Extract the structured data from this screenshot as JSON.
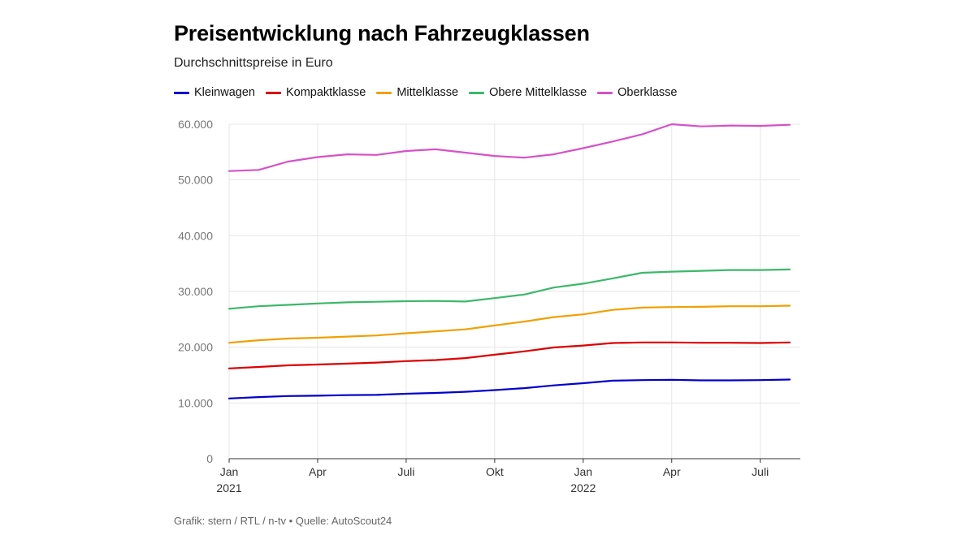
{
  "header": {
    "title": "Preisentwicklung nach Fahrzeugklassen",
    "subtitle": "Durchschnittspreise in Euro"
  },
  "footer": {
    "credit": "Grafik: stern / RTL / n-tv • Quelle: AutoScout24"
  },
  "colors": {
    "kleinwagen": "#0000cc",
    "kompaktklasse": "#dd0000",
    "mittelklasse": "#f0a000",
    "obere_mittelklasse": "#3cb86a",
    "oberklasse": "#d452c8",
    "grid": "#e6e6e6",
    "axis": "#333333"
  },
  "chart_data": {
    "type": "line",
    "title": "Preisentwicklung nach Fahrzeugklassen",
    "subtitle": "Durchschnittspreise in Euro",
    "xlabel": "",
    "ylabel": "",
    "ylim": [
      0,
      60000
    ],
    "grid": true,
    "legend_position": "top-left",
    "x": [
      "2021-01",
      "2021-02",
      "2021-03",
      "2021-04",
      "2021-05",
      "2021-06",
      "2021-07",
      "2021-08",
      "2021-09",
      "2021-10",
      "2021-11",
      "2021-12",
      "2022-01",
      "2022-02",
      "2022-03",
      "2022-04",
      "2022-05",
      "2022-06",
      "2022-07",
      "2022-08"
    ],
    "x_ticks": [
      {
        "index": 0,
        "label": "Jan",
        "year": "2021"
      },
      {
        "index": 3,
        "label": "Apr",
        "year": ""
      },
      {
        "index": 6,
        "label": "Juli",
        "year": ""
      },
      {
        "index": 9,
        "label": "Okt",
        "year": ""
      },
      {
        "index": 12,
        "label": "Jan",
        "year": "2022"
      },
      {
        "index": 15,
        "label": "Apr",
        "year": ""
      },
      {
        "index": 18,
        "label": "Juli",
        "year": ""
      }
    ],
    "y_ticks": [
      {
        "value": 0,
        "label": "0"
      },
      {
        "value": 10000,
        "label": "10.000"
      },
      {
        "value": 20000,
        "label": "20.000"
      },
      {
        "value": 30000,
        "label": "30.000"
      },
      {
        "value": 40000,
        "label": "40.000"
      },
      {
        "value": 50000,
        "label": "50.000"
      },
      {
        "value": 60000,
        "label": "60.000"
      }
    ],
    "series": [
      {
        "key": "kleinwagen",
        "name": "Kleinwagen",
        "values": [
          10800,
          11050,
          11250,
          11300,
          11400,
          11450,
          11650,
          11800,
          12000,
          12300,
          12650,
          13150,
          13550,
          14000,
          14100,
          14150,
          14050,
          14050,
          14100,
          14200
        ]
      },
      {
        "key": "kompaktklasse",
        "name": "Kompaktklasse",
        "values": [
          16200,
          16450,
          16750,
          16900,
          17050,
          17250,
          17500,
          17700,
          18050,
          18650,
          19250,
          19950,
          20300,
          20750,
          20850,
          20850,
          20800,
          20800,
          20750,
          20850
        ]
      },
      {
        "key": "mittelklasse",
        "name": "Mittelklasse",
        "values": [
          20800,
          21250,
          21550,
          21700,
          21900,
          22100,
          22500,
          22850,
          23200,
          23900,
          24600,
          25400,
          25900,
          26700,
          27100,
          27200,
          27250,
          27350,
          27350,
          27450
        ]
      },
      {
        "key": "obere_mittelklasse",
        "name": "Obere Mittelklasse",
        "values": [
          26900,
          27350,
          27600,
          27850,
          28050,
          28150,
          28250,
          28300,
          28200,
          28800,
          29450,
          30700,
          31400,
          32350,
          33350,
          33550,
          33700,
          33850,
          33850,
          33950
        ]
      },
      {
        "key": "oberklasse",
        "name": "Oberklasse",
        "values": [
          51600,
          51800,
          53300,
          54100,
          54600,
          54500,
          55200,
          55500,
          54900,
          54300,
          54000,
          54600,
          55700,
          56900,
          58200,
          60000,
          59600,
          59750,
          59700,
          59900
        ]
      }
    ]
  }
}
